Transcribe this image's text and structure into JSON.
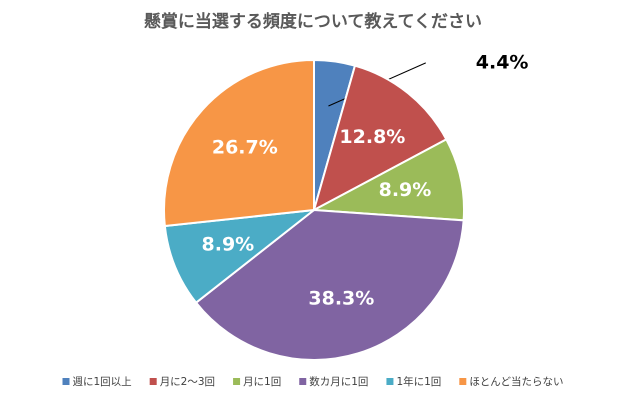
{
  "chart_data": {
    "type": "pie",
    "title": "懸賞に当選する頻度について教えてください",
    "categories": [
      "週に1回以上",
      "月に2～3回",
      "月に1回",
      "数カ月に1回",
      "1年に1回",
      "ほとんど当たらない"
    ],
    "values": [
      4.4,
      12.8,
      8.9,
      38.3,
      8.9,
      26.7
    ],
    "value_labels": [
      "4.4%",
      "12.8%",
      "8.9%",
      "38.3%",
      "8.9%",
      "26.7%"
    ],
    "colors": [
      "#4f81bd",
      "#c0504d",
      "#9bbb59",
      "#8064a2",
      "#4bacc6",
      "#f79646"
    ],
    "legend": "bottom"
  }
}
